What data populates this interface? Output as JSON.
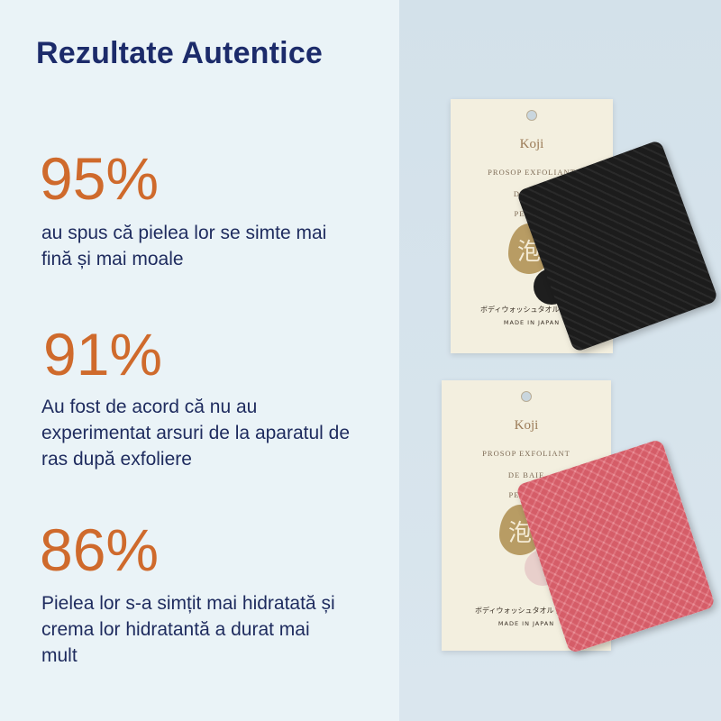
{
  "title": "Rezultate Autentice",
  "stats": [
    {
      "value": "95%",
      "text": "au spus că pielea lor se simte mai fină și mai moale"
    },
    {
      "value": "91%",
      "text": "Au fost de acord că nu au experimentat arsuri de la aparatul de ras după exfoliere"
    },
    {
      "value": "86%",
      "text": "Pielea lor s-a simțit mai hidratată și crema lor hidratantă a durat mai mult"
    }
  ],
  "products": [
    {
      "brand": "Koji",
      "line1": "PROSOP EXFOLIANT",
      "line2": "DE BAIE",
      "line3": "PENTRU",
      "kanji": "泡",
      "japanese": "ボディウォッシュタオル 泡立ち",
      "origin": "MADE IN JAPAN",
      "color": "black"
    },
    {
      "brand": "Koji",
      "line1": "PROSOP EXFOLIANT",
      "line2": "DE BAIE",
      "line3": "PENTRU",
      "kanji": "泡",
      "japanese": "ボディウォッシュタオル 泡立ち",
      "origin": "MADE IN JAPAN",
      "color": "pink"
    }
  ],
  "colors": {
    "title": "#1c2b6a",
    "accent": "#cf6a2c",
    "text": "#1e2b5e"
  }
}
